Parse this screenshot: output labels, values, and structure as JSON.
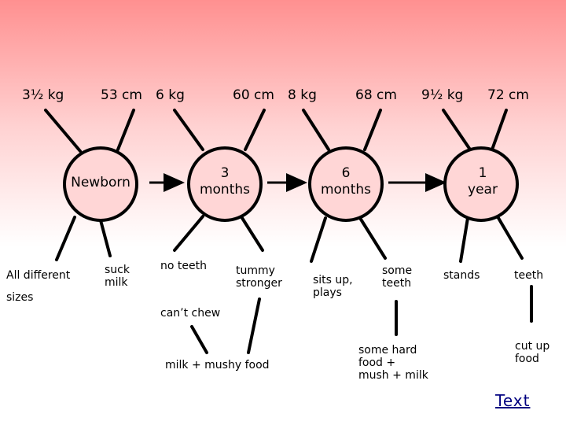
{
  "nodes": [
    {
      "id": "newborn",
      "label": "Newborn"
    },
    {
      "id": "3months",
      "label": "3\nmonths"
    },
    {
      "id": "6months",
      "label": "6\nmonths"
    },
    {
      "id": "1year",
      "label": "1\nyear"
    }
  ],
  "measurements": {
    "newborn_weight": "3½ kg",
    "newborn_length": "53 cm",
    "m3_weight": "6 kg",
    "m3_length": "60 cm",
    "m6_weight": "8 kg",
    "m6_length": "68 cm",
    "y1_weight": "9½ kg",
    "y1_length": "72 cm"
  },
  "facts": {
    "all_different_1": "All different",
    "all_different_2": "sizes",
    "suck_milk": "suck\nmilk",
    "no_teeth": "no teeth",
    "cant_chew": "can’t chew",
    "tummy_stronger": "tummy\nstronger",
    "milk_mushy": "milk + mushy food",
    "sits_up": "sits up,\nplays",
    "some_teeth": "some\nteeth",
    "hard_food": "some hard\nfood +\nmush + milk",
    "stands": "stands",
    "teeth": "teeth",
    "cut_up_food": "cut up\nfood"
  },
  "link_text": "Text"
}
